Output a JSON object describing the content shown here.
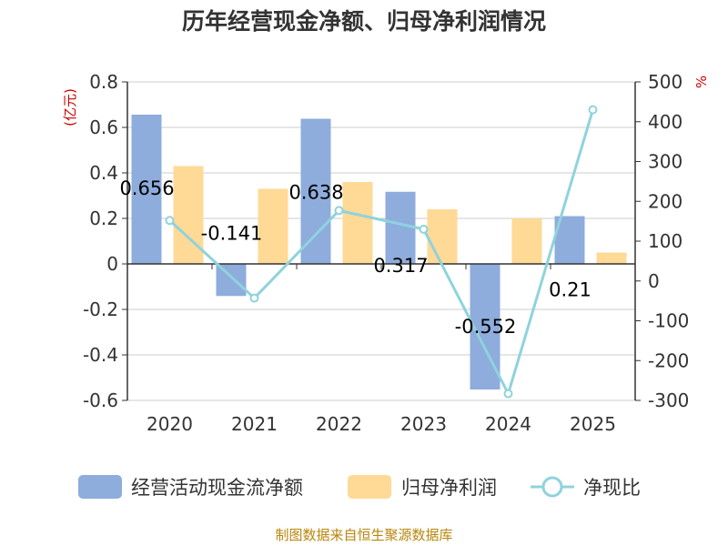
{
  "colors": {
    "cashflow": "#8eacdc",
    "profit": "#ffd996",
    "ratio": "#8fd3dc",
    "grid": "#cccccc",
    "axis": "#333333",
    "unit": "#cc0000",
    "source": "#b8860b"
  },
  "chart_data": {
    "type": "bar",
    "title": "历年经营现金净额、归母净利润情况",
    "categories": [
      "2020",
      "2021",
      "2022",
      "2023",
      "2024",
      "2025"
    ],
    "series": [
      {
        "name": "经营活动现金流净额",
        "type": "bar",
        "axis": "left",
        "values": [
          0.656,
          -0.141,
          0.638,
          0.317,
          -0.552,
          0.21
        ],
        "labels": [
          "0.656",
          "-0.141",
          "0.638",
          "0.317",
          "-0.552",
          "0.21"
        ]
      },
      {
        "name": "归母净利润",
        "type": "bar",
        "axis": "left",
        "values": [
          0.43,
          0.33,
          0.36,
          0.24,
          0.2,
          0.05
        ]
      },
      {
        "name": "净现比",
        "type": "line",
        "axis": "right",
        "values": [
          152,
          -43,
          177,
          130,
          -283,
          430
        ]
      }
    ],
    "left_axis": {
      "unit": "(亿元)",
      "min": -0.6,
      "max": 0.8,
      "ticks": [
        "0.8",
        "0.6",
        "0.4",
        "0.2",
        "0",
        "-0.2",
        "-0.4",
        "-0.6"
      ]
    },
    "right_axis": {
      "unit": "%",
      "min": -300,
      "max": 500,
      "ticks": [
        "500",
        "400",
        "300",
        "200",
        "100",
        "0",
        "-100",
        "-200",
        "-300"
      ]
    },
    "legend": [
      "经营活动现金流净额",
      "归母净利润",
      "净现比"
    ],
    "legend_position": "bottom",
    "grid": true
  },
  "source_text": "制图数据来自恒生聚源数据库"
}
